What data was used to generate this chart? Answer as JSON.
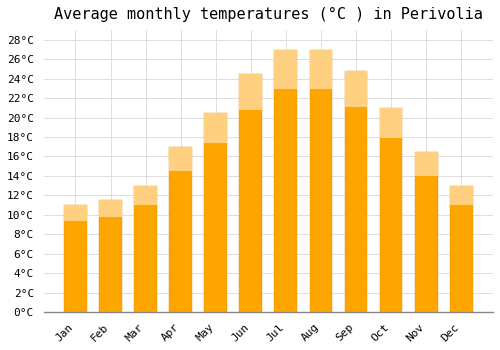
{
  "title": "Average monthly temperatures (°C ) in Perivolia",
  "months": [
    "Jan",
    "Feb",
    "Mar",
    "Apr",
    "May",
    "Jun",
    "Jul",
    "Aug",
    "Sep",
    "Oct",
    "Nov",
    "Dec"
  ],
  "temperatures": [
    11,
    11.5,
    13,
    17,
    20.5,
    24.5,
    27,
    27,
    24.8,
    21,
    16.5,
    13
  ],
  "bar_color_bottom": "#FFA500",
  "bar_color_top": "#FFD080",
  "bar_edge_color": "#E09000",
  "background_color": "#FFFFFF",
  "grid_color": "#DDDDDD",
  "ylim": [
    0,
    29
  ],
  "ytick_step": 2,
  "title_fontsize": 11,
  "tick_fontsize": 8,
  "font_family": "monospace"
}
